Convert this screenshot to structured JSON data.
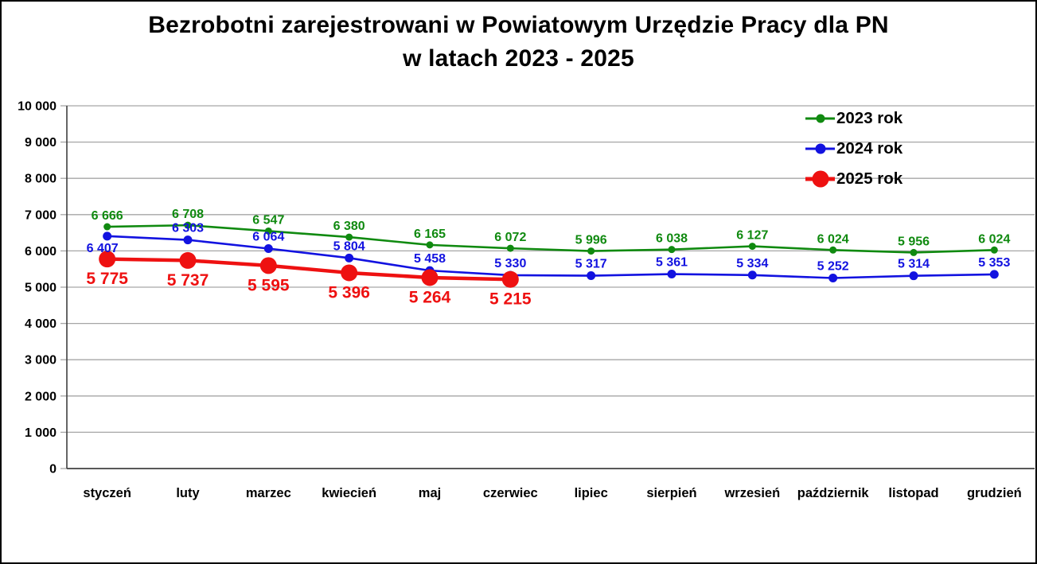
{
  "window": {
    "background": "#ffffff",
    "border_color": "#000000"
  },
  "title": {
    "line1": "Bezrobotni zarejestrowani w Powiatowym Urzędzie Pracy dla PN",
    "line2": "w latach 2023 - 2025"
  },
  "chart_data": {
    "type": "line",
    "title": "Bezrobotni zarejestrowani w Powiatowym Urzędzie Pracy dla PN w latach 2023 - 2025",
    "categories": [
      "styczeń",
      "luty",
      "marzec",
      "kwiecień",
      "maj",
      "czerwiec",
      "lipiec",
      "sierpień",
      "wrzesień",
      "październik",
      "listopad",
      "grudzień"
    ],
    "series": [
      {
        "name": "2023 rok",
        "color": "#108a10",
        "values": [
          6666,
          6708,
          6547,
          6380,
          6165,
          6072,
          5996,
          6038,
          6127,
          6024,
          5956,
          6024
        ],
        "line_width": 2.6,
        "marker_radius": 4.5,
        "label_font_size": 16,
        "label_position": "above"
      },
      {
        "name": "2024 rok",
        "color": "#1212e0",
        "values": [
          6407,
          6303,
          6064,
          5804,
          5458,
          5330,
          5317,
          5361,
          5334,
          5252,
          5314,
          5353
        ],
        "line_width": 2.6,
        "marker_radius": 5.5,
        "label_font_size": 16,
        "label_position": "above",
        "label_offset_overrides": {
          "0": [
            -6,
            20
          ]
        }
      },
      {
        "name": "2025 rok",
        "color": "#ee1111",
        "values": [
          5775,
          5737,
          5595,
          5396,
          5264,
          5215
        ],
        "line_width": 4.5,
        "marker_radius": 10.5,
        "label_font_size": 21,
        "label_position": "below"
      }
    ],
    "ylim": [
      0,
      10000
    ],
    "ytick_step": 1000,
    "ytick_labels": [
      "0",
      "1 000",
      "2 000",
      "3 000",
      "4 000",
      "5 000",
      "6 000",
      "7 000",
      "8 000",
      "9 000",
      "10 000"
    ],
    "grid": "horizontal",
    "gridline_color": "#a6a6a6",
    "axis_color": "#404040",
    "tick_label_color": "#000000",
    "legend_position": "top-right",
    "number_format": "space-thousands"
  }
}
